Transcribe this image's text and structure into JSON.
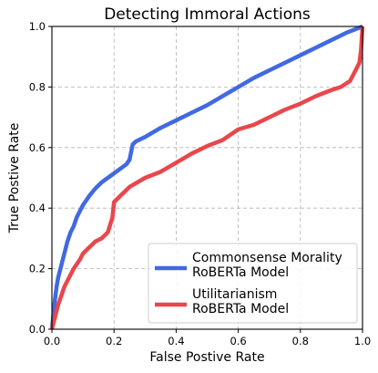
{
  "chart_data": {
    "type": "line",
    "title": "Detecting Immoral Actions",
    "xlabel": "False Postive Rate",
    "ylabel": "True Postive Rate",
    "xlim": [
      0,
      1
    ],
    "ylim": [
      0,
      1
    ],
    "x_ticks": [
      "0.0",
      "0.2",
      "0.4",
      "0.6",
      "0.8",
      "1.0"
    ],
    "y_ticks": [
      "0.0",
      "0.2",
      "0.4",
      "0.6",
      "0.8",
      "1.0"
    ],
    "grid": true,
    "legend_position": "lower-right",
    "series": [
      {
        "name": "Commonsense Morality RoBERTa Model",
        "legend_lines": [
          "Commonsense Morality",
          "RoBERTa Model"
        ],
        "color": "#4169e1",
        "points": [
          [
            0.0,
            0.0
          ],
          [
            0.005,
            0.05
          ],
          [
            0.01,
            0.1
          ],
          [
            0.015,
            0.14
          ],
          [
            0.02,
            0.17
          ],
          [
            0.03,
            0.21
          ],
          [
            0.04,
            0.25
          ],
          [
            0.05,
            0.29
          ],
          [
            0.06,
            0.32
          ],
          [
            0.07,
            0.34
          ],
          [
            0.08,
            0.37
          ],
          [
            0.09,
            0.39
          ],
          [
            0.1,
            0.41
          ],
          [
            0.12,
            0.44
          ],
          [
            0.14,
            0.465
          ],
          [
            0.16,
            0.485
          ],
          [
            0.18,
            0.5
          ],
          [
            0.2,
            0.515
          ],
          [
            0.22,
            0.53
          ],
          [
            0.24,
            0.545
          ],
          [
            0.25,
            0.56
          ],
          [
            0.26,
            0.61
          ],
          [
            0.27,
            0.62
          ],
          [
            0.3,
            0.635
          ],
          [
            0.35,
            0.665
          ],
          [
            0.4,
            0.69
          ],
          [
            0.45,
            0.715
          ],
          [
            0.5,
            0.74
          ],
          [
            0.55,
            0.77
          ],
          [
            0.6,
            0.8
          ],
          [
            0.65,
            0.83
          ],
          [
            0.7,
            0.855
          ],
          [
            0.75,
            0.88
          ],
          [
            0.8,
            0.905
          ],
          [
            0.85,
            0.93
          ],
          [
            0.9,
            0.955
          ],
          [
            0.95,
            0.98
          ],
          [
            1.0,
            1.0
          ]
        ]
      },
      {
        "name": "Utilitarianism RoBERTa Model",
        "legend_lines": [
          "Utilitarianism",
          "RoBERTa Model"
        ],
        "color": "#e8474c",
        "points": [
          [
            0.0,
            0.0
          ],
          [
            0.01,
            0.04
          ],
          [
            0.02,
            0.08
          ],
          [
            0.03,
            0.11
          ],
          [
            0.04,
            0.14
          ],
          [
            0.05,
            0.16
          ],
          [
            0.06,
            0.18
          ],
          [
            0.07,
            0.2
          ],
          [
            0.08,
            0.215
          ],
          [
            0.09,
            0.23
          ],
          [
            0.1,
            0.25
          ],
          [
            0.12,
            0.27
          ],
          [
            0.14,
            0.29
          ],
          [
            0.16,
            0.3
          ],
          [
            0.18,
            0.32
          ],
          [
            0.195,
            0.37
          ],
          [
            0.2,
            0.42
          ],
          [
            0.22,
            0.44
          ],
          [
            0.25,
            0.47
          ],
          [
            0.3,
            0.5
          ],
          [
            0.35,
            0.52
          ],
          [
            0.4,
            0.55
          ],
          [
            0.45,
            0.58
          ],
          [
            0.5,
            0.605
          ],
          [
            0.55,
            0.625
          ],
          [
            0.6,
            0.66
          ],
          [
            0.65,
            0.675
          ],
          [
            0.7,
            0.7
          ],
          [
            0.75,
            0.725
          ],
          [
            0.8,
            0.745
          ],
          [
            0.85,
            0.77
          ],
          [
            0.9,
            0.79
          ],
          [
            0.93,
            0.8
          ],
          [
            0.96,
            0.82
          ],
          [
            0.98,
            0.86
          ],
          [
            0.99,
            0.88
          ],
          [
            0.995,
            0.92
          ],
          [
            1.0,
            1.0
          ]
        ]
      }
    ]
  }
}
